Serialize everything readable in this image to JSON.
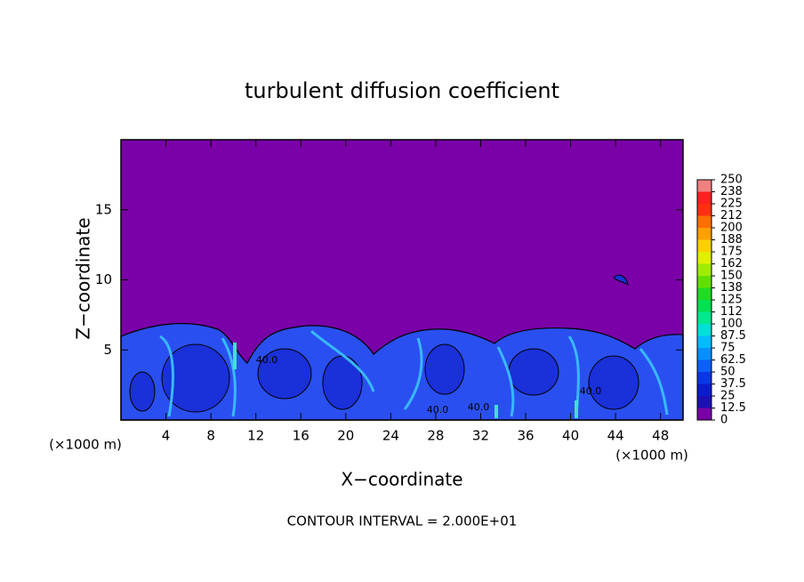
{
  "chart_data": {
    "type": "contour",
    "title": "turbulent diffusion coefficient",
    "xlabel": "X−coordinate",
    "ylabel": "Z−coordinate",
    "x_unit_label": "(×1000 m)",
    "y_unit_label": "(×1000 m)",
    "note": "CONTOUR INTERVAL = 2.000E+01",
    "xlim": [
      0,
      50
    ],
    "xticks": [
      4,
      8,
      12,
      16,
      20,
      24,
      28,
      32,
      36,
      40,
      44,
      48
    ],
    "ylim": [
      0,
      20
    ],
    "yticks": [
      5,
      10,
      15
    ],
    "contour_labels": [
      "40.0",
      "40.0",
      "40.0",
      "40.0"
    ],
    "colorbar": {
      "levels": [
        0,
        12.5,
        25,
        37.5,
        50,
        62.5,
        75,
        87.5,
        100,
        {
          "value": 112.5,
          "label": "112"
        },
        125,
        {
          "value": 137.5,
          "label": "138"
        },
        150,
        {
          "value": 162.5,
          "label": "162"
        },
        175,
        {
          "value": 187.5,
          "label": "188"
        },
        200,
        {
          "value": 212.5,
          "label": "212"
        },
        225,
        {
          "value": 237.5,
          "label": "238"
        },
        250
      ],
      "colors": [
        "#7a00a8",
        "#1c10b4",
        "#0a1ccc",
        "#0838e4",
        "#0a60f8",
        "#0890ff",
        "#00bcff",
        "#00e0d8",
        "#00e890",
        "#00e050",
        "#20dc20",
        "#60e000",
        "#a0ec00",
        "#e0f000",
        "#ffd000",
        "#ffa000",
        "#ff7000",
        "#ff3010",
        "#ff2020",
        "#f08080"
      ]
    }
  }
}
